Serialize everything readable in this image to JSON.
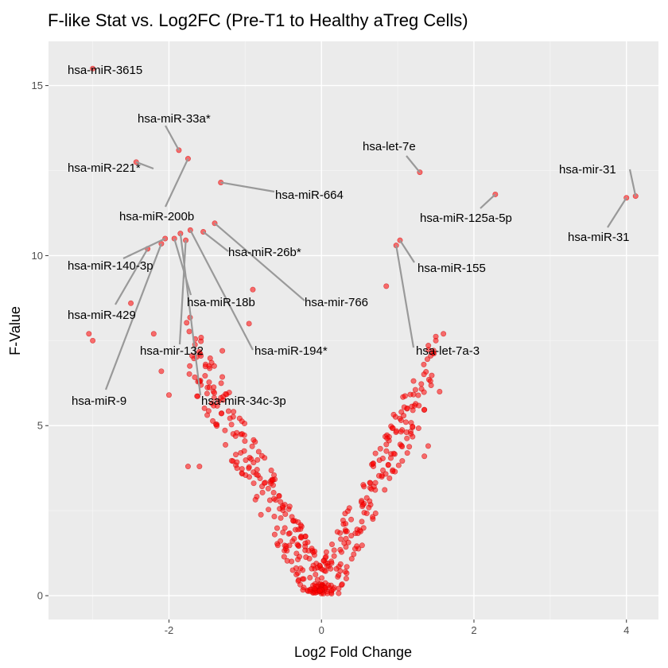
{
  "chart_data": {
    "type": "scatter",
    "title": "F-like Stat vs. Log2FC (Pre-T1 to Healthy aTreg Cells)",
    "xlabel": "Log2 Fold Change",
    "ylabel": "F-Value",
    "xlim": [
      -3.58,
      4.42
    ],
    "ylim": [
      -0.7,
      16.3
    ],
    "x_ticks": [
      -2,
      0,
      2,
      4
    ],
    "y_ticks": [
      0,
      5,
      10,
      15
    ],
    "grid": true,
    "point_color": "#ff0000",
    "panel_color": "#ebebeb",
    "labeled_points": [
      {
        "label": "hsa-miR-3615",
        "x": -3.0,
        "y": 15.5
      },
      {
        "label": "hsa-miR-33a*",
        "x": -1.87,
        "y": 13.1
      },
      {
        "label": "hsa-miR-221*",
        "x": -2.43,
        "y": 12.75
      },
      {
        "label": "hsa-let-7e",
        "x": 1.29,
        "y": 12.45
      },
      {
        "label": "hsa-mir-31",
        "x": 4.12,
        "y": 11.75
      },
      {
        "label": "hsa-miR-664",
        "x": -1.32,
        "y": 12.15
      },
      {
        "label": "hsa-miR-125a-5p",
        "x": 2.28,
        "y": 11.8
      },
      {
        "label": "hsa-miR-31",
        "x": 4.0,
        "y": 11.7
      },
      {
        "label": "hsa-miR-200b",
        "x": -1.75,
        "y": 12.85
      },
      {
        "label": "hsa-miR-26b*",
        "x": -1.55,
        "y": 10.7
      },
      {
        "label": "hsa-miR-140-3p",
        "x": -2.05,
        "y": 10.5
      },
      {
        "label": "hsa-miR-155",
        "x": 1.03,
        "y": 10.45
      },
      {
        "label": "hsa-miR-429",
        "x": -2.28,
        "y": 10.2
      },
      {
        "label": "hsa-miR-18b",
        "x": -1.93,
        "y": 10.5
      },
      {
        "label": "hsa-mir-766",
        "x": -1.4,
        "y": 10.95
      },
      {
        "label": "hsa-mir-132",
        "x": -1.78,
        "y": 10.45
      },
      {
        "label": "hsa-miR-194*",
        "x": -1.72,
        "y": 10.75
      },
      {
        "label": "hsa-let-7a-3",
        "x": 0.98,
        "y": 10.3
      },
      {
        "label": "hsa-miR-9",
        "x": -2.1,
        "y": 10.35
      },
      {
        "label": "hsa-miR-34c-3p",
        "x": -1.85,
        "y": 10.65
      }
    ],
    "other_points_note": "Several hundred unlabeled points forming a V shape centered at x=0, y≈0; F-value increases with |log2FC|."
  }
}
